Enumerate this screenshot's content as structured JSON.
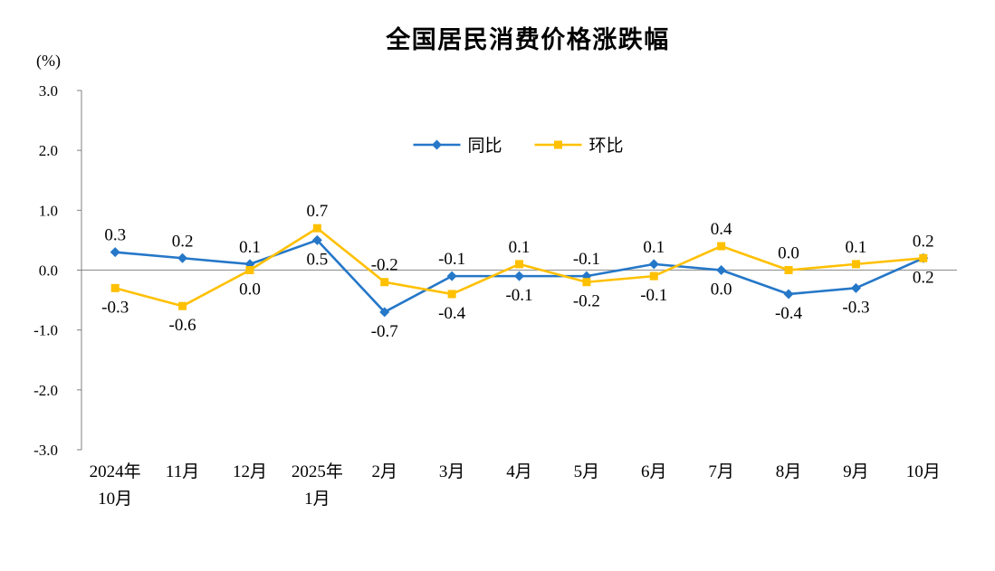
{
  "chart_data": {
    "type": "line",
    "title": "全国居民消费价格涨跌幅",
    "y_unit_label": "(%)",
    "categories": [
      "2024年\n10月",
      "11月",
      "12月",
      "2025年\n1月",
      "2月",
      "3月",
      "4月",
      "5月",
      "6月",
      "7月",
      "8月",
      "9月",
      "10月"
    ],
    "series": [
      {
        "name": "同比",
        "color": "#2577C8",
        "marker": "diamond",
        "values": [
          0.3,
          0.2,
          0.1,
          0.5,
          -0.7,
          -0.1,
          -0.1,
          -0.1,
          0.1,
          0.0,
          -0.4,
          -0.3,
          0.2
        ]
      },
      {
        "name": "环比",
        "color": "#FFC000",
        "marker": "square",
        "values": [
          -0.3,
          -0.6,
          0.0,
          0.7,
          -0.2,
          -0.4,
          0.1,
          -0.2,
          -0.1,
          0.4,
          0.0,
          0.1,
          0.2
        ]
      }
    ],
    "ylim": [
      -3.0,
      3.0
    ],
    "ytick_step": 1.0,
    "yticks": [
      "3.0",
      "2.0",
      "1.0",
      "0.0",
      "-1.0",
      "-2.0",
      "-3.0"
    ],
    "grid": "zero-line-only",
    "data_labels": true,
    "legend_position": "top-center-inside",
    "axis_color": "#808080",
    "zero_line_color": "#9A9A9A",
    "label_color": "#000000",
    "background_color": "#FFFFFF"
  }
}
